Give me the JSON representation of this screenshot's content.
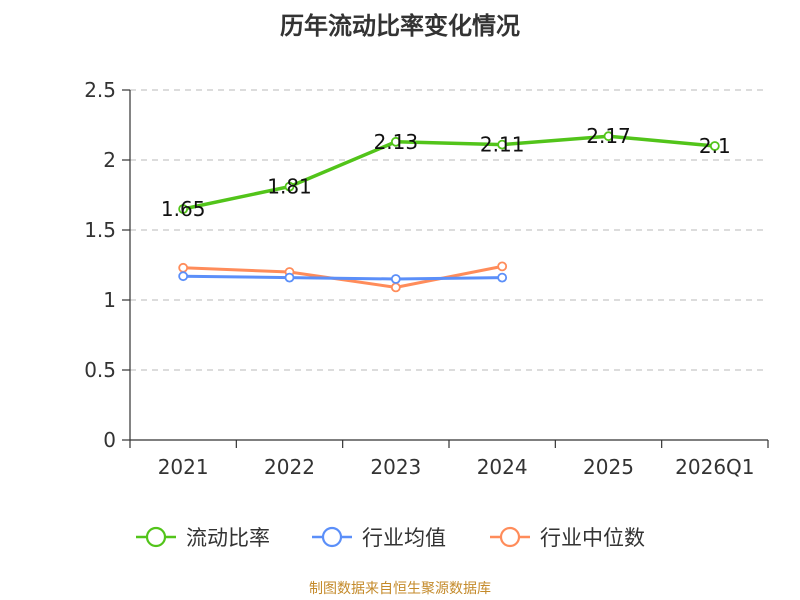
{
  "source": "制图数据来自恒生聚源数据库",
  "chart_data": {
    "type": "line",
    "title": "历年流动比率变化情况",
    "categories": [
      "2021",
      "2022",
      "2023",
      "2024",
      "2025",
      "2026Q1"
    ],
    "y_ticks": [
      "0",
      "0.5",
      "1",
      "1.5",
      "2",
      "2.5"
    ],
    "ylim": [
      0,
      2.5
    ],
    "grid": true,
    "legend_position": "bottom",
    "series": [
      {
        "name": "流动比率",
        "color": "#52c41a",
        "values": [
          1.65,
          1.81,
          2.13,
          2.11,
          2.17,
          2.1
        ],
        "labels": [
          "1.65",
          "1.81",
          "2.13",
          "2.11",
          "2.17",
          "2.1"
        ]
      },
      {
        "name": "行业均值",
        "color": "#5b8ff9",
        "values": [
          1.17,
          1.16,
          1.15,
          1.16,
          null,
          null
        ]
      },
      {
        "name": "行业中位数",
        "color": "#ff8c5a",
        "values": [
          1.23,
          1.2,
          1.09,
          1.24,
          null,
          null
        ]
      }
    ]
  }
}
